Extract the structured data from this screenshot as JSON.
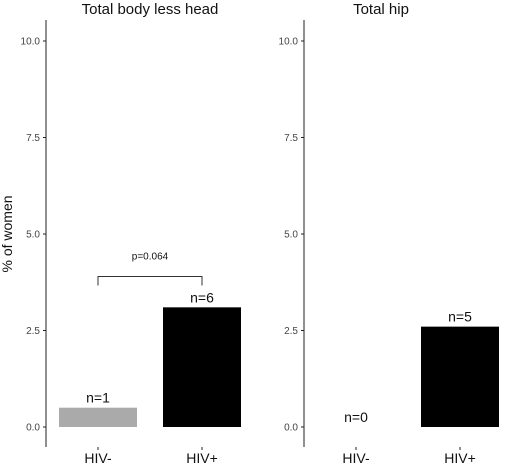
{
  "chart_data": [
    {
      "type": "bar",
      "title": "Total body less head",
      "xlabel": "",
      "ylabel": "% of women",
      "ylim": [
        0,
        10
      ],
      "yticks": [
        "0.0",
        "2.5",
        "5.0",
        "7.5",
        "10.0"
      ],
      "categories": [
        "HIV-",
        "HIV+"
      ],
      "values": [
        0.5,
        3.1
      ],
      "bar_colors": [
        "#aaaaaa",
        "#000000"
      ],
      "data_labels": [
        "n=1",
        "n=6"
      ],
      "annotation": {
        "text": "p=0.064",
        "between": [
          "HIV-",
          "HIV+"
        ],
        "y": 3.9
      },
      "grid": false
    },
    {
      "type": "bar",
      "title": "Total hip",
      "xlabel": "",
      "ylabel": "",
      "ylim": [
        0,
        10
      ],
      "yticks": [
        "0.0",
        "2.5",
        "5.0",
        "7.5",
        "10.0"
      ],
      "categories": [
        "HIV-",
        "HIV+"
      ],
      "values": [
        0,
        2.6
      ],
      "bar_colors": [
        "#aaaaaa",
        "#000000"
      ],
      "data_labels": [
        "n=0",
        "n=5"
      ],
      "grid": false
    }
  ]
}
